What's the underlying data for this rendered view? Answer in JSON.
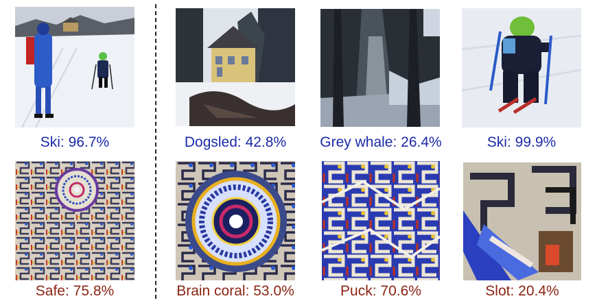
{
  "figure": {
    "top_row": [
      {
        "label": "Ski: 96.7%",
        "scene": "adult-and-child-skiing"
      },
      {
        "label": "Dogsled: 42.8%",
        "scene": "yellow-house-in-snow"
      },
      {
        "label": "Grey whale: 26.4%",
        "scene": "blurred-snowy-forest"
      },
      {
        "label": "Ski: 99.9%",
        "scene": "child-skier-closeup"
      }
    ],
    "bottom_row": [
      {
        "label": "Safe: 75.8%",
        "scene": "adversarial-patch"
      },
      {
        "label": "Brain coral: 53.0%",
        "scene": "adversarial-patch-zoom"
      },
      {
        "label": "Puck: 70.6%",
        "scene": "adversarial-patch-maze"
      },
      {
        "label": "Slot: 20.4%",
        "scene": "adversarial-patch-closeup"
      }
    ],
    "colors": {
      "top_label": "#1a2aa8",
      "bottom_label": "#8b2414"
    }
  }
}
